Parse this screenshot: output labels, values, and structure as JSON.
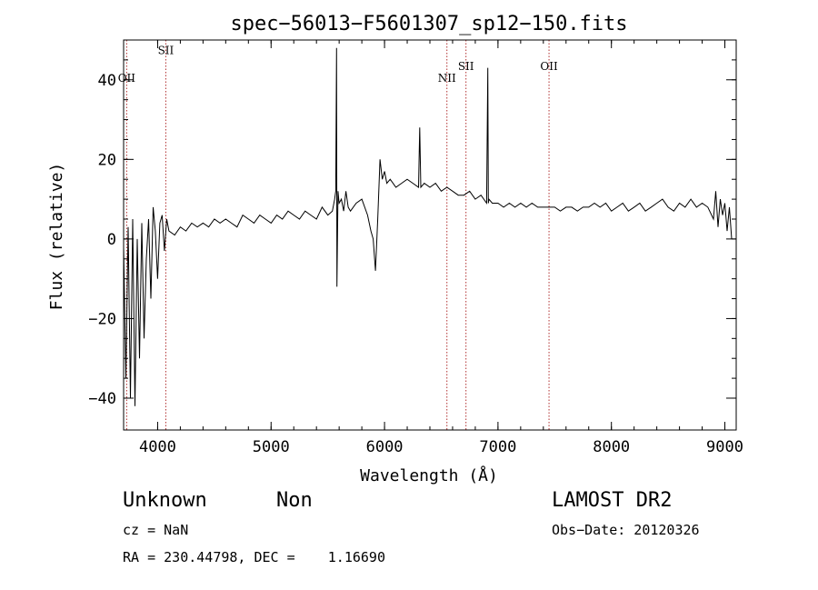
{
  "chart_data": {
    "type": "line",
    "title": "spec−56013−F5601307_sp12−150.fits",
    "xlabel": "Wavelength (Å)",
    "ylabel": "Flux (relative)",
    "xlim": [
      3700,
      9100
    ],
    "ylim": [
      -48,
      50
    ],
    "xticks": [
      {
        "value": 4000,
        "label": "4000"
      },
      {
        "value": 5000,
        "label": "5000"
      },
      {
        "value": 6000,
        "label": "6000"
      },
      {
        "value": 7000,
        "label": "7000"
      },
      {
        "value": 8000,
        "label": "8000"
      },
      {
        "value": 9000,
        "label": "9000"
      }
    ],
    "yticks": [
      {
        "value": -40,
        "label": "−40"
      },
      {
        "value": -20,
        "label": "−20"
      },
      {
        "value": 0,
        "label": "0"
      },
      {
        "value": 20,
        "label": "20"
      },
      {
        "value": 40,
        "label": "40"
      }
    ],
    "line_markers": [
      {
        "label": "OII",
        "x": 3727,
        "label_y": 39.5
      },
      {
        "label": "SII",
        "x": 4072,
        "label_y": 46.5
      },
      {
        "label": "NII",
        "x": 6550,
        "label_y": 39.5
      },
      {
        "label": "SII",
        "x": 6718,
        "label_y": 42.5
      },
      {
        "label": "OII",
        "x": 7450,
        "label_y": 42.5
      }
    ],
    "series": [
      {
        "x": [
          3700,
          3720,
          3740,
          3760,
          3780,
          3800,
          3820,
          3840,
          3860,
          3880,
          3900,
          3920,
          3940,
          3960,
          3980,
          4000,
          4020,
          4040,
          4060,
          4080,
          4100,
          4150,
          4200,
          4250,
          4300,
          4350,
          4400,
          4450,
          4500,
          4550,
          4600,
          4650,
          4700,
          4750,
          4800,
          4850,
          4900,
          4950,
          5000,
          5050,
          5100,
          5150,
          5200,
          5250,
          5300,
          5350,
          5400,
          5450,
          5500,
          5540,
          5560,
          5570,
          5577,
          5580,
          5590,
          5600,
          5620,
          5640,
          5660,
          5680,
          5700,
          5750,
          5800,
          5850,
          5880,
          5900,
          5920,
          5940,
          5960,
          5980,
          6000,
          6020,
          6050,
          6100,
          6150,
          6200,
          6250,
          6300,
          6310,
          6320,
          6350,
          6400,
          6450,
          6500,
          6550,
          6600,
          6650,
          6700,
          6750,
          6800,
          6850,
          6900,
          6910,
          6915,
          6920,
          6950,
          7000,
          7050,
          7100,
          7150,
          7200,
          7250,
          7300,
          7350,
          7400,
          7450,
          7500,
          7550,
          7600,
          7650,
          7700,
          7750,
          7800,
          7850,
          7900,
          7950,
          8000,
          8050,
          8100,
          8150,
          8200,
          8250,
          8300,
          8350,
          8400,
          8450,
          8500,
          8550,
          8600,
          8650,
          8700,
          8750,
          8800,
          8850,
          8900,
          8920,
          8940,
          8960,
          8980,
          9000,
          9020,
          9040,
          9060
        ],
        "values": [
          -2,
          -35,
          3,
          -40,
          5,
          -42,
          0,
          -30,
          4,
          -25,
          -5,
          5,
          -15,
          8,
          2,
          -10,
          4,
          6,
          -3,
          5,
          2,
          1,
          3,
          2,
          4,
          3,
          4,
          3,
          5,
          4,
          5,
          4,
          3,
          6,
          5,
          4,
          6,
          5,
          4,
          6,
          5,
          7,
          6,
          5,
          7,
          6,
          5,
          8,
          6,
          7,
          10,
          12,
          48,
          -12,
          12,
          9,
          10,
          7,
          12,
          8,
          7,
          9,
          10,
          6,
          2,
          0,
          -8,
          5,
          20,
          15,
          17,
          14,
          15,
          13,
          14,
          15,
          14,
          13,
          28,
          13,
          14,
          13,
          14,
          12,
          13,
          12,
          11,
          11,
          12,
          10,
          11,
          9,
          43,
          9,
          10,
          9,
          9,
          8,
          9,
          8,
          9,
          8,
          9,
          8,
          8,
          8,
          8,
          7,
          8,
          8,
          7,
          8,
          8,
          9,
          8,
          9,
          7,
          8,
          9,
          7,
          8,
          9,
          7,
          8,
          9,
          10,
          8,
          7,
          9,
          8,
          10,
          8,
          9,
          8,
          5,
          12,
          3,
          10,
          6,
          9,
          2,
          8,
          0
        ]
      }
    ]
  },
  "info": {
    "class": "Unknown",
    "subclass": "Non",
    "survey": "LAMOST DR2",
    "cz": "cz = NaN",
    "obs_date": "Obs−Date: 20120326",
    "coords": "RA = 230.44798, DEC =    1.16690"
  }
}
